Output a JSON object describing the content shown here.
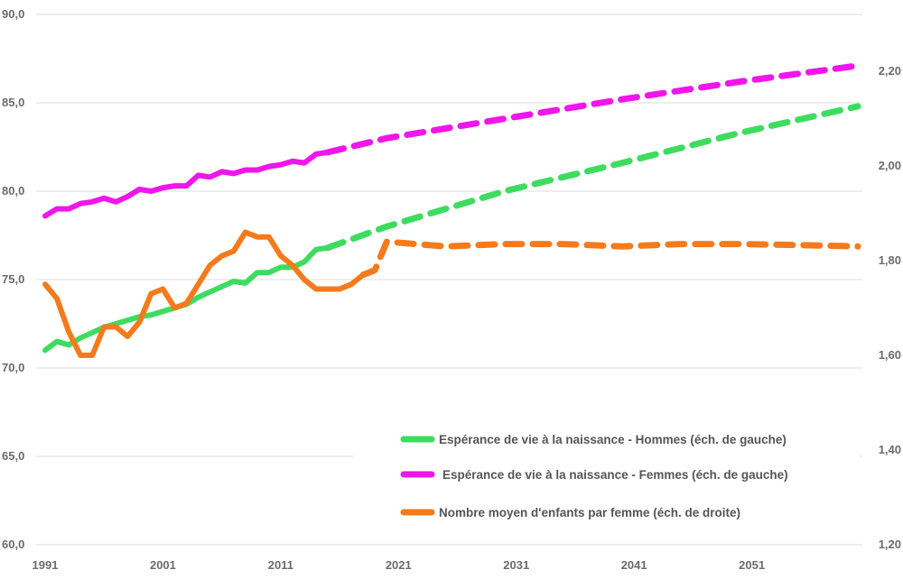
{
  "chart_data": {
    "type": "line",
    "colors": {
      "hommes": "#3ddc5f",
      "femmes": "#f015ea",
      "enfants": "#f57a1c",
      "grid": "#e3e3e3",
      "tick_text": "#6b6b6b",
      "legend_text": "#555555"
    },
    "x_ticks": [
      "1991",
      "2001",
      "2011",
      "2021",
      "2031",
      "2041",
      "2051"
    ],
    "xlim": [
      1991,
      2060
    ],
    "y_left": {
      "ticks": [
        "60,0",
        "65,0",
        "70,0",
        "75,0",
        "80,0",
        "85,0",
        "90,0"
      ],
      "ylim": [
        60,
        90
      ]
    },
    "y_right": {
      "ticks": [
        "1,20",
        "1,40",
        "1,60",
        "1,80",
        "2,00",
        "2,20"
      ],
      "ylim": [
        1.2,
        2.32
      ]
    },
    "grid": "horizontal",
    "legend_position": "bottom-center",
    "series": [
      {
        "key": "hommes",
        "name": "Espérance de vie à la naissance - Hommes (éch. de gauche)",
        "axis": "left",
        "solid_until": 2015,
        "points": [
          [
            1991,
            71.0
          ],
          [
            1992,
            71.5
          ],
          [
            1993,
            71.3
          ],
          [
            1994,
            71.7
          ],
          [
            1995,
            72.0
          ],
          [
            1996,
            72.3
          ],
          [
            1997,
            72.5
          ],
          [
            1998,
            72.7
          ],
          [
            1999,
            72.9
          ],
          [
            2000,
            73.0
          ],
          [
            2001,
            73.2
          ],
          [
            2002,
            73.4
          ],
          [
            2003,
            73.6
          ],
          [
            2004,
            74.0
          ],
          [
            2005,
            74.3
          ],
          [
            2006,
            74.6
          ],
          [
            2007,
            74.9
          ],
          [
            2008,
            74.8
          ],
          [
            2009,
            75.4
          ],
          [
            2010,
            75.4
          ],
          [
            2011,
            75.7
          ],
          [
            2012,
            75.7
          ],
          [
            2013,
            76.0
          ],
          [
            2014,
            76.7
          ],
          [
            2015,
            76.8
          ],
          [
            2020,
            78.0
          ],
          [
            2030,
            80.0
          ],
          [
            2040,
            81.6
          ],
          [
            2050,
            83.3
          ],
          [
            2060,
            84.8
          ]
        ]
      },
      {
        "key": "femmes",
        "name": "Espérance de vie à la naissance - Femmes (éch. de gauche)",
        "axis": "left",
        "solid_until": 2015,
        "points": [
          [
            1991,
            78.6
          ],
          [
            1992,
            79.0
          ],
          [
            1993,
            79.0
          ],
          [
            1994,
            79.3
          ],
          [
            1995,
            79.4
          ],
          [
            1996,
            79.6
          ],
          [
            1997,
            79.4
          ],
          [
            1998,
            79.7
          ],
          [
            1999,
            80.1
          ],
          [
            2000,
            80.0
          ],
          [
            2001,
            80.2
          ],
          [
            2002,
            80.3
          ],
          [
            2003,
            80.3
          ],
          [
            2004,
            80.9
          ],
          [
            2005,
            80.8
          ],
          [
            2006,
            81.1
          ],
          [
            2007,
            81.0
          ],
          [
            2008,
            81.2
          ],
          [
            2009,
            81.2
          ],
          [
            2010,
            81.4
          ],
          [
            2011,
            81.5
          ],
          [
            2012,
            81.7
          ],
          [
            2013,
            81.6
          ],
          [
            2014,
            82.1
          ],
          [
            2015,
            82.2
          ],
          [
            2020,
            83.0
          ],
          [
            2030,
            84.1
          ],
          [
            2040,
            85.2
          ],
          [
            2050,
            86.2
          ],
          [
            2060,
            87.1
          ]
        ]
      },
      {
        "key": "enfants",
        "name": "Nombre moyen d'enfants par femme (éch. de droite)",
        "axis": "right",
        "solid_until": 2018,
        "points": [
          [
            1991,
            1.75
          ],
          [
            1992,
            1.72
          ],
          [
            1993,
            1.65
          ],
          [
            1994,
            1.6
          ],
          [
            1995,
            1.6
          ],
          [
            1996,
            1.66
          ],
          [
            1997,
            1.66
          ],
          [
            1998,
            1.64
          ],
          [
            1999,
            1.67
          ],
          [
            2000,
            1.73
          ],
          [
            2001,
            1.74
          ],
          [
            2002,
            1.7
          ],
          [
            2003,
            1.71
          ],
          [
            2004,
            1.75
          ],
          [
            2005,
            1.79
          ],
          [
            2006,
            1.81
          ],
          [
            2007,
            1.82
          ],
          [
            2008,
            1.86
          ],
          [
            2009,
            1.85
          ],
          [
            2010,
            1.85
          ],
          [
            2011,
            1.81
          ],
          [
            2012,
            1.79
          ],
          [
            2013,
            1.76
          ],
          [
            2014,
            1.74
          ],
          [
            2015,
            1.74
          ],
          [
            2016,
            1.74
          ],
          [
            2017,
            1.75
          ],
          [
            2018,
            1.77
          ],
          [
            2019,
            1.78
          ],
          [
            2020,
            1.84
          ],
          [
            2025,
            1.83
          ],
          [
            2030,
            1.835
          ],
          [
            2035,
            1.835
          ],
          [
            2040,
            1.83
          ],
          [
            2045,
            1.835
          ],
          [
            2050,
            1.835
          ],
          [
            2055,
            1.833
          ],
          [
            2060,
            1.83
          ]
        ]
      }
    ]
  }
}
